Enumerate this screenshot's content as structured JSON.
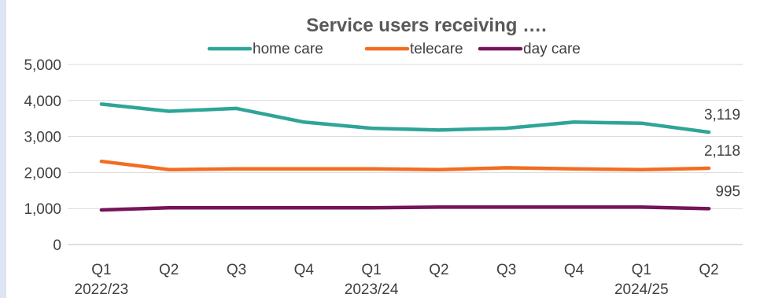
{
  "chart_data": {
    "type": "line",
    "title": "Service users receiving ….",
    "categories": [
      "Q1",
      "Q2",
      "Q3",
      "Q4",
      "Q1",
      "Q2",
      "Q3",
      "Q4",
      "Q1",
      "Q2"
    ],
    "year_groups": [
      {
        "label": "2022/23",
        "index": 0
      },
      {
        "label": "2023/24",
        "index": 4
      },
      {
        "label": "2024/25",
        "index": 8
      }
    ],
    "y_ticks": [
      "0",
      "1,000",
      "2,000",
      "3,000",
      "4,000",
      "5,000"
    ],
    "ylim": [
      0,
      5000
    ],
    "grid": true,
    "legend_position": "top",
    "series": [
      {
        "name": "home care",
        "color": "#2ea597",
        "values": [
          3900,
          3700,
          3780,
          3400,
          3230,
          3180,
          3230,
          3400,
          3370,
          3119
        ],
        "end_label": "3,119"
      },
      {
        "name": "telecare",
        "color": "#f26d21",
        "values": [
          2310,
          2080,
          2100,
          2100,
          2100,
          2080,
          2130,
          2100,
          2080,
          2118
        ],
        "end_label": "2,118"
      },
      {
        "name": "day care",
        "color": "#76145a",
        "values": [
          960,
          1020,
          1020,
          1020,
          1020,
          1040,
          1040,
          1040,
          1040,
          995
        ],
        "end_label": "995"
      }
    ]
  }
}
